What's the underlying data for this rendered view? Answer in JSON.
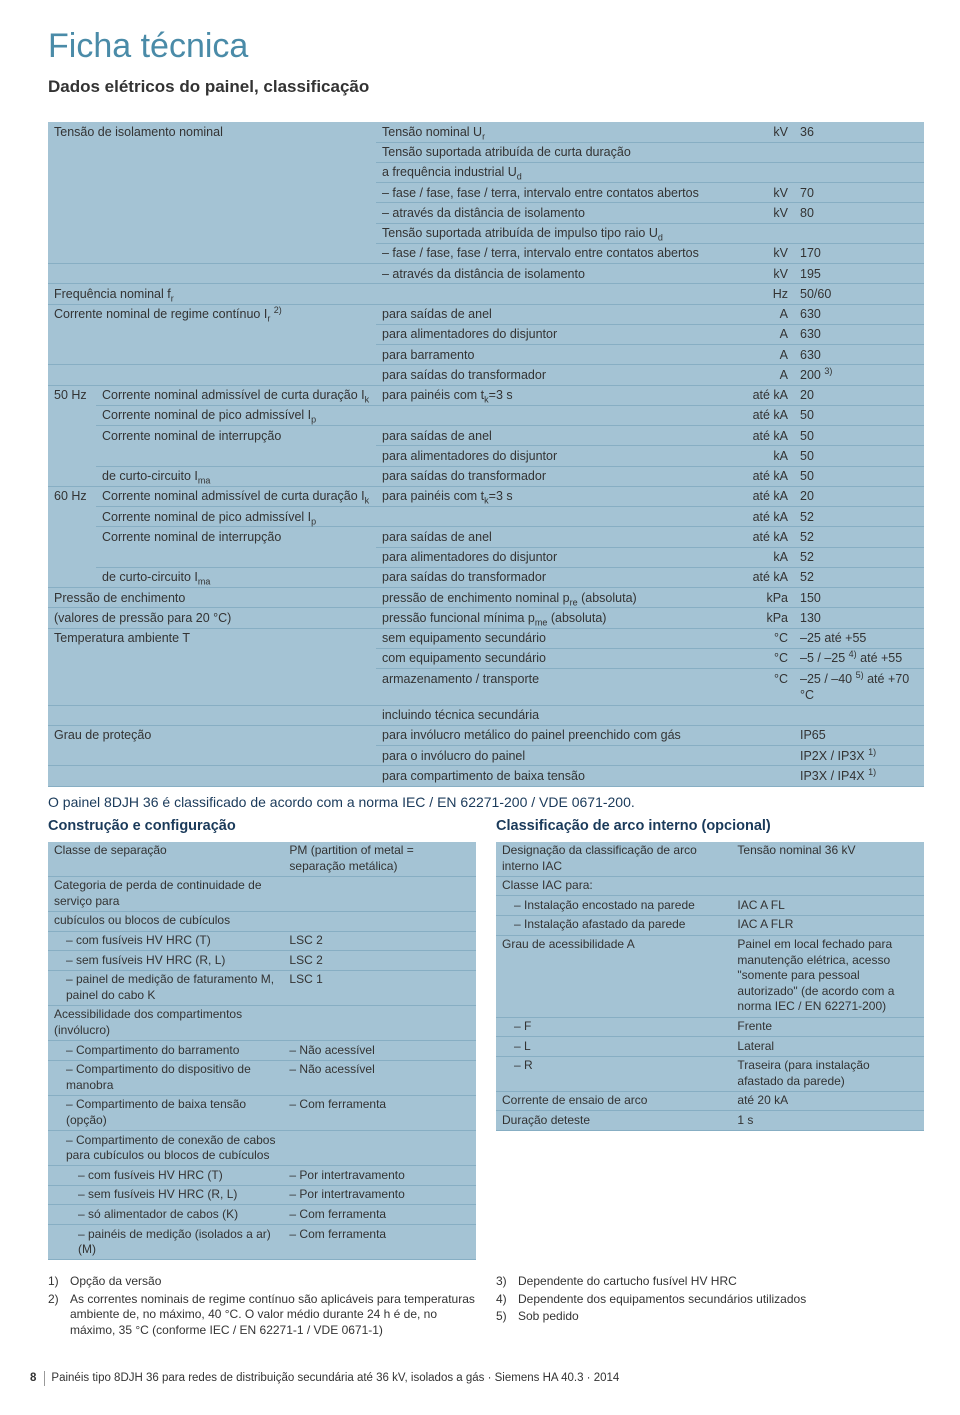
{
  "title": "Ficha técnica",
  "subtitle": "Dados elétricos do painel, classificação",
  "mainTable": [
    {
      "c12": "Tensão de isolamento nominal",
      "c3": "Tensão nominal U_r",
      "c4": "kV",
      "c5": "36",
      "rowspan12": 7
    },
    {
      "c3": "Tensão suportada atribuída de curta duração",
      "c4": "",
      "c5": ""
    },
    {
      "c3": "a frequência industrial U_d",
      "c4": "",
      "c5": ""
    },
    {
      "c3": "– fase / fase, fase / terra, intervalo entre contatos abertos",
      "c4": "kV",
      "c5": "70"
    },
    {
      "c3": "– através da distância de isolamento",
      "c4": "kV",
      "c5": "80"
    },
    {
      "c3": "Tensão suportada atribuída de impulso tipo raio U_d",
      "c4": "",
      "c5": ""
    },
    {
      "c3": "– fase / fase, fase / terra, intervalo entre contatos abertos",
      "c4": "kV",
      "c5": "170"
    },
    {
      "c12": "",
      "c3": "– através da distância de isolamento",
      "c4": "kV",
      "c5": "195"
    },
    {
      "c12": "Frequência nominal f_r",
      "c3": "",
      "c4": "Hz",
      "c5": "50/60"
    },
    {
      "c12": "Corrente nominal de regime contínuo I_r ^2)",
      "c3": "para saídas de anel",
      "c4": "A",
      "c5": "630",
      "rowspan12": 3
    },
    {
      "c3": "para alimentadores do disjuntor",
      "c4": "A",
      "c5": "630"
    },
    {
      "c3": "para barramento",
      "c4": "A",
      "c5": "630"
    },
    {
      "c12": "",
      "c3": "para saídas do transformador",
      "c4": "A",
      "c5": "200 ^3)"
    },
    {
      "c1": "50 Hz",
      "c2": "Corrente nominal admissível de curta duração I_k",
      "c3": "para painéis com t_k=3 s",
      "c4": "até kA",
      "c5": "20",
      "rowspan1": 5
    },
    {
      "c2": "Corrente nominal de pico admissível I_p",
      "c3": "",
      "c4": "até kA",
      "c5": "50"
    },
    {
      "c2": "Corrente nominal de interrupção",
      "c3": "para saídas de anel",
      "c4": "até kA",
      "c5": "50",
      "rowspan2": 2
    },
    {
      "c3": "para alimentadores do disjuntor",
      "c4": "kA",
      "c5": "50"
    },
    {
      "c2": "de curto-circuito I_ma",
      "c3": "para saídas do transformador",
      "c4": "até kA",
      "c5": "50"
    },
    {
      "c1": "60 Hz",
      "c2": "Corrente nominal admissível de curta duração I_k",
      "c3": "para painéis com t_k=3 s",
      "c4": "até kA",
      "c5": "20",
      "rowspan1": 5
    },
    {
      "c2": "Corrente nominal de pico admissível I_p",
      "c3": "",
      "c4": "até kA",
      "c5": "52"
    },
    {
      "c2": "Corrente nominal de interrupção",
      "c3": "para saídas de anel",
      "c4": "até kA",
      "c5": "52",
      "rowspan2": 2
    },
    {
      "c3": "para alimentadores do disjuntor",
      "c4": "kA",
      "c5": "52"
    },
    {
      "c2": "de curto-circuito I_ma",
      "c3": "para saídas do transformador",
      "c4": "até kA",
      "c5": "52"
    },
    {
      "c12": "Pressão de enchimento",
      "c3": "pressão de enchimento nominal p_re (absoluta)",
      "c4": "kPa",
      "c5": "150"
    },
    {
      "c12": "(valores de pressão para 20 °C)",
      "c3": "pressão funcional mínima p_me (absoluta)",
      "c4": "kPa",
      "c5": "130"
    },
    {
      "c12": "Temperatura ambiente T",
      "c3": "sem equipamento secundário",
      "c4": "°C",
      "c5": "–25 até +55",
      "rowspan12": 3
    },
    {
      "c3": "com equipamento secundário",
      "c4": "°C",
      "c5": "–5 / –25 ^4) até +55"
    },
    {
      "c3": "armazenamento / transporte",
      "c4": "°C",
      "c5": "–25 / –40 ^5) até +70 °C"
    },
    {
      "c12": "",
      "c3": "incluindo técnica secundária",
      "c4": "",
      "c5": ""
    },
    {
      "c12": "Grau de proteção",
      "c3": "para invólucro metálico do painel preenchido com gás",
      "c4": "",
      "c5": "IP65",
      "rowspan12": 2
    },
    {
      "c3": "para o invólucro do painel",
      "c4": "",
      "c5": "IP2X / IP3X ^1)"
    },
    {
      "c12": "",
      "c3": "para compartimento de baixa tensão",
      "c4": "",
      "c5": "IP3X / IP4X ^1)"
    }
  ],
  "normText": "O painel 8DJH 36 é classificado de acordo com a norma IEC / EN 62271-200 / VDE 0671-200.",
  "leftHeader": "Construção e configuração",
  "rightHeader": "Classificação de arco interno (opcional)",
  "leftTable": [
    {
      "l": "Classe de separação",
      "r": "PM (partition of metal = separação metálica)"
    },
    {
      "l": "Categoria de perda de continuidade de serviço para",
      "r": ""
    },
    {
      "l": "cubículos ou blocos de cubículos",
      "r": ""
    },
    {
      "l": "  – com fusíveis HV HRC (T)",
      "r": "LSC 2"
    },
    {
      "l": "  – sem fusíveis HV HRC (R, L)",
      "r": "LSC 2"
    },
    {
      "l": "  – painel de medição de faturamento M, painel do cabo K",
      "r": "LSC 1"
    },
    {
      "l": "Acessibilidade dos compartimentos (invólucro)",
      "r": ""
    },
    {
      "l": "  – Compartimento do barramento",
      "r": "– Não acessível"
    },
    {
      "l": "  – Compartimento do dispositivo de manobra",
      "r": "– Não acessível"
    },
    {
      "l": "  – Compartimento de baixa tensão (opção)",
      "r": "– Com ferramenta"
    },
    {
      "l": "  – Compartimento de conexão de cabos para cubículos ou blocos de cubículos",
      "r": ""
    },
    {
      "l": "    – com fusíveis HV HRC (T)",
      "r": "– Por intertravamento"
    },
    {
      "l": "    – sem fusíveis HV HRC (R, L)",
      "r": "– Por intertravamento"
    },
    {
      "l": "    – só alimentador de cabos (K)",
      "r": "– Com ferramenta"
    },
    {
      "l": "    – painéis de medição (isolados a ar) (M)",
      "r": "– Com ferramenta"
    }
  ],
  "rightTable": [
    {
      "l": "Designação da classificação de arco interno IAC",
      "r": "Tensão nominal 36 kV"
    },
    {
      "l": "Classe IAC para:",
      "r": ""
    },
    {
      "l": "  – Instalação encostado na parede",
      "r": "IAC A FL"
    },
    {
      "l": "  – Instalação afastado da parede",
      "r": "IAC A FLR"
    },
    {
      "l": "Grau de acessibilidade A",
      "r": "Painel em local fechado para manutenção elétrica, acesso \"somente para pessoal autorizado\" (de acordo com a norma IEC / EN 62271-200)"
    },
    {
      "l": "  – F",
      "r": "Frente"
    },
    {
      "l": "  – L",
      "r": "Lateral"
    },
    {
      "l": "  – R",
      "r": "Traseira (para instalação afastado da parede)"
    },
    {
      "l": "Corrente de ensaio de arco",
      "r": "até 20 kA"
    },
    {
      "l": "Duração deteste",
      "r": "1 s"
    }
  ],
  "footnotesLeft": [
    {
      "n": "1)",
      "t": "Opção da versão"
    },
    {
      "n": "2)",
      "t": "As correntes nominais de regime contínuo são aplicáveis para temperaturas ambiente de, no máximo, 40 °C. O valor médio durante 24 h é de, no máximo, 35 °C (conforme IEC / EN 62271-1 / VDE 0671-1)"
    }
  ],
  "footnotesRight": [
    {
      "n": "3)",
      "t": "Dependente do cartucho fusível HV HRC"
    },
    {
      "n": "4)",
      "t": "Dependente dos equipamentos secundários utilizados"
    },
    {
      "n": "5)",
      "t": "Sob pedido"
    }
  ],
  "pageNum": "8",
  "footerText": "Painéis tipo 8DJH 36 para redes de distribuição secundária até 36 kV, isolados a gás · Siemens HA 40.3 · 2014"
}
